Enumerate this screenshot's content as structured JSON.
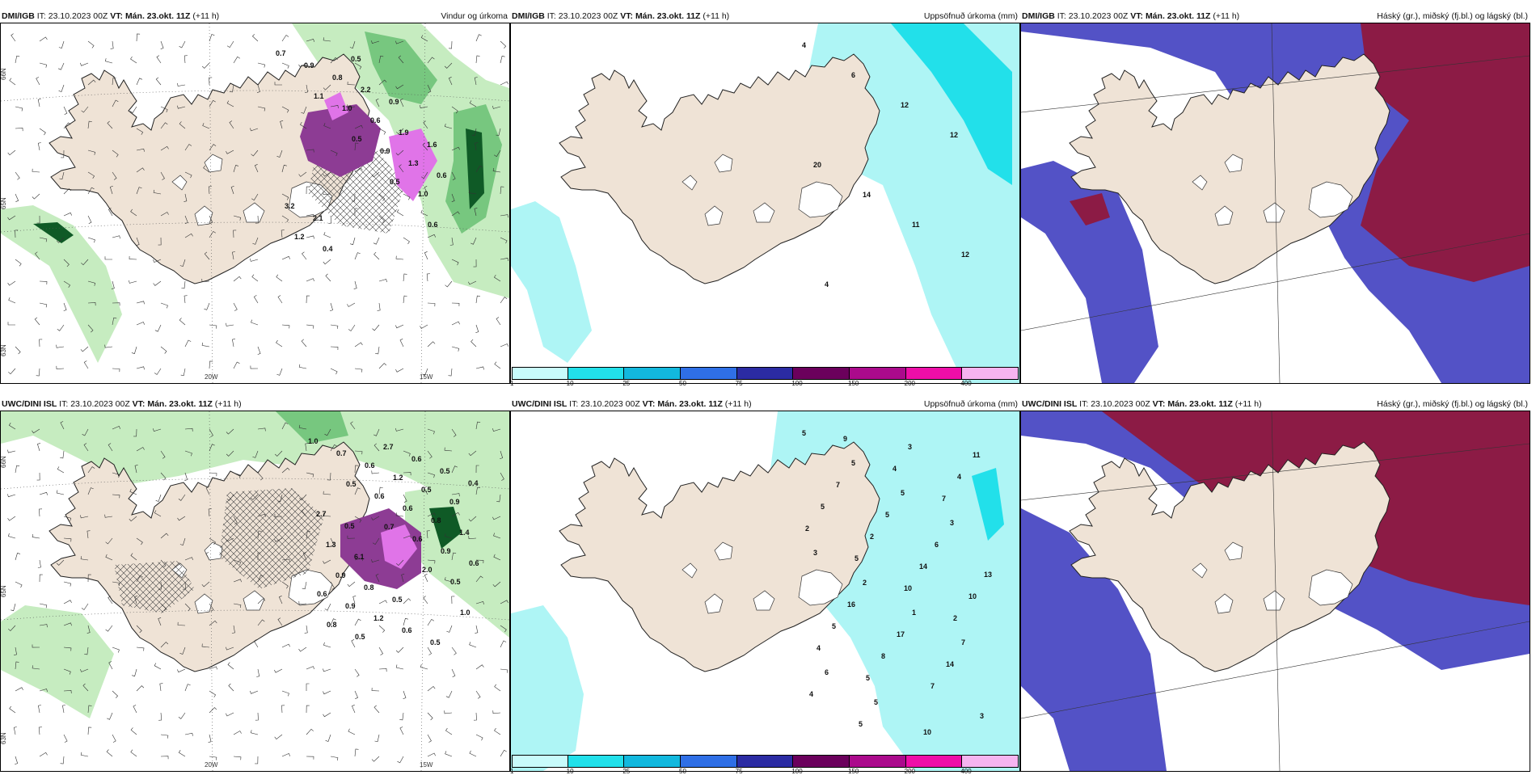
{
  "colors": {
    "land": "#efe3d6",
    "ocean": "#ffffff",
    "wind_green_light": "#c6ecc0",
    "wind_green_mid": "#77c77f",
    "wind_green_dark": "#0f5a26",
    "precip_purple": "#8d3c94",
    "precip_pink": "#e074e8",
    "accum_cyan": "#aef5f5",
    "accum_cyan_strong": "#22e0ea",
    "cloud_blue": "#5352c6",
    "cloud_red": "#8c1b45"
  },
  "panels": [
    {
      "id": "p1",
      "kind": "wind",
      "source": "DMI/IGB",
      "it_label": "IT:",
      "it_value": "23.10.2023 00Z",
      "vt_label": "VT:",
      "vt_value": "Mán. 23.okt. 11Z",
      "lead": "(+11 h)",
      "right_title": "Vindur og úrkoma",
      "grid_labels": [
        "66N",
        "65N",
        "20W",
        "15W",
        "63N"
      ],
      "value_labels": [
        {
          "t": "0.7"
        },
        {
          "t": "1.1"
        },
        {
          "t": "0.5"
        },
        {
          "t": "0.5"
        },
        {
          "t": "0.6"
        },
        {
          "t": "0.9"
        },
        {
          "t": "1.0"
        },
        {
          "t": "0.9"
        },
        {
          "t": "1.0"
        },
        {
          "t": "1.2"
        },
        {
          "t": "0.8"
        },
        {
          "t": "0.6"
        },
        {
          "t": "1.3"
        },
        {
          "t": "3.2"
        },
        {
          "t": "0.4"
        },
        {
          "t": "2.2"
        },
        {
          "t": "1.9"
        },
        {
          "t": "0.6"
        },
        {
          "t": "2.1"
        },
        {
          "t": "0.5"
        },
        {
          "t": "0.9"
        },
        {
          "t": "1.6"
        }
      ]
    },
    {
      "id": "p2",
      "kind": "accum",
      "source": "DMI/IGB",
      "it_label": "IT:",
      "it_value": "23.10.2023 00Z",
      "vt_label": "VT:",
      "vt_value": "Mán. 23.okt. 11Z",
      "lead": "(+11 h)",
      "right_title": "Uppsöfnuð úrkoma (mm)",
      "value_labels": [
        {
          "t": "4"
        },
        {
          "t": "6"
        },
        {
          "t": "12"
        },
        {
          "t": "12"
        },
        {
          "t": "20"
        },
        {
          "t": "14"
        },
        {
          "t": "11"
        },
        {
          "t": "12"
        },
        {
          "t": "4"
        }
      ],
      "colorbar": {
        "colors": [
          "#c8fbfb",
          "#22e0ea",
          "#12b8de",
          "#2f6fe6",
          "#2b2ba3",
          "#6b005c",
          "#ab0a8c",
          "#ee0ea8",
          "#f6b4f0"
        ],
        "ticks": [
          "1",
          "10",
          "25",
          "50",
          "75",
          "100",
          "150",
          "200",
          "400"
        ]
      }
    },
    {
      "id": "p3",
      "kind": "cloud",
      "source": "DMI/IGB",
      "it_label": "IT:",
      "it_value": "23.10.2023 00Z",
      "vt_label": "VT:",
      "vt_value": "Mán. 23.okt. 11Z",
      "lead": "(+11 h)",
      "right_title": "Háský (gr.), miðský (fj.bl.) og lágský (bl.)"
    },
    {
      "id": "p4",
      "kind": "wind",
      "source": "UWC/DINI ISL",
      "it_label": "IT:",
      "it_value": "23.10.2023 00Z",
      "vt_label": "VT:",
      "vt_value": "Mán. 23.okt. 11Z",
      "lead": "(+11 h)",
      "right_title": "",
      "grid_labels": [
        "66N",
        "65N",
        "20W",
        "15W",
        "63N"
      ],
      "value_labels": [
        {
          "t": "1.0"
        },
        {
          "t": "0.5"
        },
        {
          "t": "0.7"
        },
        {
          "t": "2.0"
        },
        {
          "t": "1.0"
        },
        {
          "t": "0.7"
        },
        {
          "t": "0.6"
        },
        {
          "t": "0.6"
        },
        {
          "t": "0.5"
        },
        {
          "t": "0.8"
        },
        {
          "t": "0.6"
        },
        {
          "t": "0.6"
        },
        {
          "t": "0.9"
        },
        {
          "t": "0.6"
        },
        {
          "t": "0.5"
        },
        {
          "t": "1.2"
        },
        {
          "t": "0.8"
        },
        {
          "t": "0.6"
        },
        {
          "t": "0.9"
        },
        {
          "t": "2.7"
        },
        {
          "t": "0.5"
        },
        {
          "t": "1.4"
        },
        {
          "t": "0.9"
        },
        {
          "t": "1.2"
        },
        {
          "t": "0.6"
        },
        {
          "t": "0.9"
        },
        {
          "t": "1.3"
        },
        {
          "t": "0.8"
        },
        {
          "t": "0.6"
        },
        {
          "t": "0.5"
        },
        {
          "t": "2.7"
        },
        {
          "t": "6.1"
        },
        {
          "t": "0.5"
        },
        {
          "t": "0.5"
        },
        {
          "t": "0.4"
        },
        {
          "t": "0.5"
        }
      ]
    },
    {
      "id": "p5",
      "kind": "accum",
      "source": "UWC/DINI ISL",
      "it_label": "IT:",
      "it_value": "23.10.2023 00Z",
      "vt_label": "VT:",
      "vt_value": "Mán. 23.okt. 11Z",
      "lead": "(+11 h)",
      "right_title": "Uppsöfnuð úrkoma (mm)",
      "value_labels": [
        {
          "t": "5"
        },
        {
          "t": "5"
        },
        {
          "t": "5"
        },
        {
          "t": "3"
        },
        {
          "t": "3"
        },
        {
          "t": "2"
        },
        {
          "t": "1"
        },
        {
          "t": "7"
        },
        {
          "t": "6"
        },
        {
          "t": "5"
        },
        {
          "t": "10"
        },
        {
          "t": "11"
        },
        {
          "t": "7"
        },
        {
          "t": "5"
        },
        {
          "t": "6"
        },
        {
          "t": "13"
        },
        {
          "t": "16"
        },
        {
          "t": "17"
        },
        {
          "t": "14"
        },
        {
          "t": "4"
        },
        {
          "t": "5"
        },
        {
          "t": "3"
        },
        {
          "t": "4"
        },
        {
          "t": "5"
        },
        {
          "t": "2"
        },
        {
          "t": "14"
        },
        {
          "t": "10"
        },
        {
          "t": "5"
        },
        {
          "t": "8"
        },
        {
          "t": "7"
        },
        {
          "t": "3"
        },
        {
          "t": "9"
        },
        {
          "t": "4"
        },
        {
          "t": "7"
        },
        {
          "t": "2"
        },
        {
          "t": "5"
        },
        {
          "t": "10"
        },
        {
          "t": "2"
        },
        {
          "t": "4"
        },
        {
          "t": "5"
        }
      ],
      "colorbar": {
        "colors": [
          "#c8fbfb",
          "#22e0ea",
          "#12b8de",
          "#2f6fe6",
          "#2b2ba3",
          "#6b005c",
          "#ab0a8c",
          "#ee0ea8",
          "#f6b4f0"
        ],
        "ticks": [
          "1",
          "10",
          "25",
          "50",
          "75",
          "100",
          "150",
          "200",
          "400"
        ]
      }
    },
    {
      "id": "p6",
      "kind": "cloud",
      "source": "UWC/DINI ISL",
      "it_label": "IT:",
      "it_value": "23.10.2023 00Z",
      "vt_label": "VT:",
      "vt_value": "Mán. 23.okt. 11Z",
      "lead": "(+11 h)",
      "right_title": "Háský (gr.), miðský (fj.bl.) og lágský (bl.)"
    }
  ]
}
